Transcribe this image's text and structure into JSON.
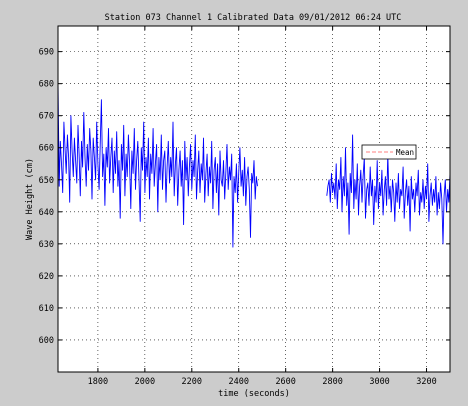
{
  "window": {
    "background_color": "#cccccc"
  },
  "chart_data": {
    "type": "line",
    "title": "Station 073 Channel 1 Calibrated Data  09/01/2012 06:24 UTC",
    "xlabel": "time (seconds)",
    "ylabel": "Wave Height (cm)",
    "xlim": [
      1630,
      3300
    ],
    "ylim": [
      590,
      698
    ],
    "xticks": [
      1800,
      2000,
      2200,
      2400,
      2600,
      2800,
      3000,
      3200
    ],
    "yticks": [
      600,
      610,
      620,
      630,
      640,
      650,
      660,
      670,
      680,
      690
    ],
    "grid": true,
    "legend": {
      "position": "right",
      "entries": [
        "Mean"
      ]
    },
    "series": [
      {
        "name": "Mean",
        "color": "#ff8080",
        "style": "dashed",
        "points": []
      },
      {
        "color": "#0000ff",
        "style": "solid",
        "segments": [
          {
            "x_start": 1630,
            "x_end": 2480,
            "dx": 5,
            "y": [
              681,
              648,
              662,
              655,
              646,
              668,
              660,
              652,
              664,
              657,
              643,
              670,
              659,
              651,
              663,
              656,
              649,
              667,
              658,
              645,
              662,
              654,
              671,
              657,
              648,
              661,
              653,
              666,
              659,
              644,
              663,
              657,
              650,
              668,
              655,
              647,
              662,
              675,
              651,
              658,
              642,
              660,
              654,
              666,
              649,
              657,
              663,
              646,
              659,
              652,
              665,
              648,
              656,
              638,
              661,
              653,
              667,
              645,
              658,
              651,
              664,
              655,
              641,
              659,
              652,
              666,
              647,
              656,
              662,
              650,
              637,
              660,
              653,
              668,
              646,
              657,
              651,
              663,
              644,
              658,
              652,
              666,
              648,
              655,
              661,
              640,
              657,
              650,
              664,
              647,
              656,
              659,
              643,
              654,
              662,
              649,
              657,
              651,
              668,
              645,
              655,
              660,
              642,
              653,
              659,
              648,
              656,
              636,
              662,
              650,
              657,
              645,
              654,
              661,
              647,
              656,
              651,
              664,
              644,
              653,
              659,
              646,
              655,
              650,
              663,
              643,
              652,
              658,
              645,
              654,
              649,
              662,
              641,
              653,
              657,
              646,
              655,
              639,
              659,
              650,
              648,
              656,
              644,
              652,
              661,
              647,
              654,
              650,
              658,
              629,
              651,
              646,
              655,
              643,
              652,
              660,
              648,
              653,
              645,
              657,
              642,
              651,
              654,
              647,
              632,
              652,
              649,
              656,
              644,
              651,
              648
            ]
          },
          {
            "x_start": 2775,
            "x_end": 3300,
            "dx": 5,
            "y": [
              645,
              648,
              650,
              643,
              652,
              646,
              649,
              644,
              655,
              641,
              650,
              647,
              657,
              640,
              651,
              645,
              660,
              642,
              649,
              633,
              652,
              646,
              664,
              641,
              650,
              644,
              655,
              639,
              648,
              653,
              643,
              651,
              657,
              638,
              647,
              649,
              642,
              654,
              645,
              650,
              636,
              648,
              643,
              656,
              641,
              649,
              645,
              653,
              639,
              647,
              651,
              642,
              658,
              644,
              648,
              640,
              650,
              646,
              637,
              649,
              643,
              652,
              641,
              647,
              645,
              654,
              638,
              646,
              650,
              642,
              648,
              634,
              651,
              644,
              647,
              640,
              649,
              645,
              653,
              639,
              646,
              643,
              650,
              641,
              648,
              644,
              655,
              637,
              645,
              649,
              642,
              647,
              643,
              651,
              639,
              646,
              641,
              649,
              644,
              630,
              645,
              650,
              640,
              647,
              643,
              652
            ]
          }
        ]
      }
    ]
  }
}
